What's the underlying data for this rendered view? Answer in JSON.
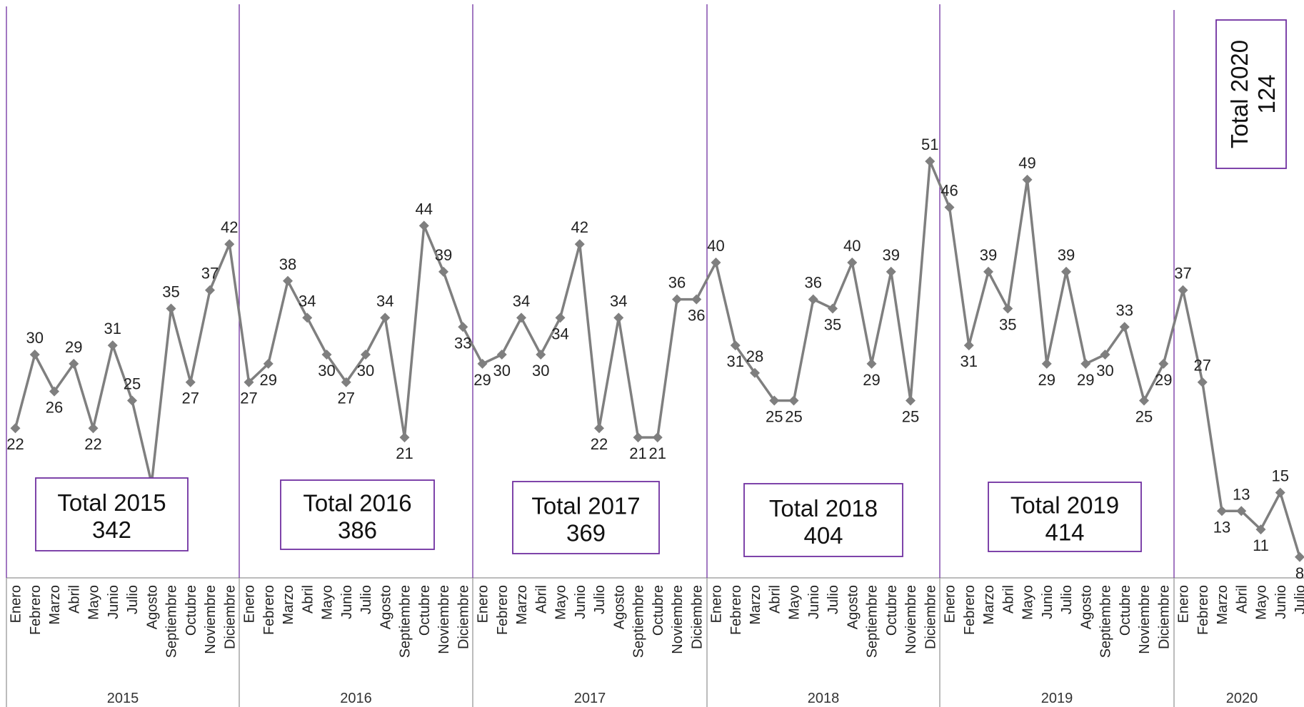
{
  "chart_data": {
    "type": "line",
    "title": "",
    "xlabel": "",
    "ylabel": "",
    "ylim": [
      0,
      60
    ],
    "grid": false,
    "months": [
      "Enero",
      "Febrero",
      "Marzo",
      "Abril",
      "Mayo",
      "Junio",
      "Julio",
      "Agosto",
      "Septiembre",
      "Octubre",
      "Noviembre",
      "Diciembre"
    ],
    "years": [
      {
        "year": "2015",
        "values": [
          22,
          30,
          26,
          29,
          22,
          31,
          25,
          16,
          35,
          27,
          37,
          42
        ],
        "total_label": "Total 2015",
        "total": "342"
      },
      {
        "year": "2016",
        "values": [
          27,
          29,
          38,
          34,
          30,
          27,
          30,
          34,
          21,
          44,
          39,
          33
        ],
        "total_label": "Total 2016",
        "total": "386"
      },
      {
        "year": "2017",
        "values": [
          29,
          30,
          34,
          30,
          34,
          42,
          22,
          34,
          21,
          21,
          36,
          36
        ],
        "total_label": "Total 2017",
        "total": "369"
      },
      {
        "year": "2018",
        "values": [
          40,
          31,
          28,
          25,
          25,
          36,
          35,
          40,
          29,
          39,
          25,
          51
        ],
        "total_label": "Total 2018",
        "total": "404"
      },
      {
        "year": "2019",
        "values": [
          46,
          31,
          39,
          35,
          49,
          29,
          39,
          29,
          30,
          33,
          25,
          29
        ],
        "total_label": "Total 2019",
        "total": "414"
      },
      {
        "year": "2020",
        "values": [
          37,
          27,
          13,
          13,
          11,
          15,
          8
        ],
        "total_label": "Total 2020",
        "total": "124"
      }
    ],
    "highlights": {
      "max_color": "#e00000",
      "min_color": "#00a050"
    },
    "colors": {
      "line": "#7f7f7f",
      "separator": "#7030a0",
      "box_border": "#7030a0",
      "axis": "#a6a6a6"
    }
  }
}
